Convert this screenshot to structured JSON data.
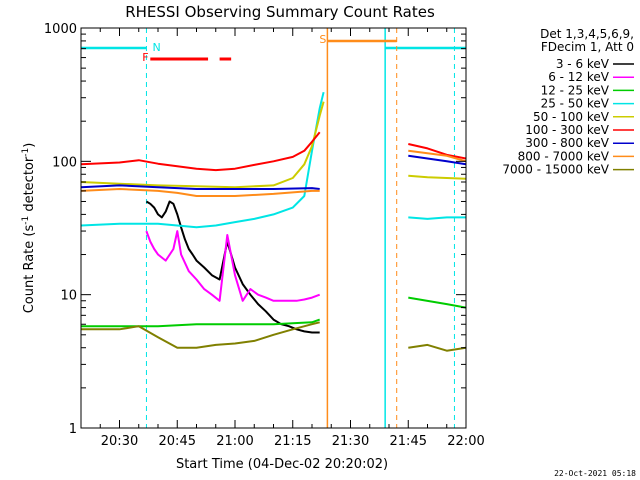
{
  "chart_data": {
    "type": "line",
    "title": "RHESSI Observing Summary Count Rates",
    "xlabel": "Start Time (04-Dec-02 20:20:02)",
    "ylabel_main": "Count Rate (s",
    "ylabel_sup1": "-1",
    "ylabel_mid": " detector",
    "ylabel_sup2": "-1",
    "ylabel_end": ")",
    "yscale": "log",
    "ylim": [
      1,
      1000
    ],
    "xlim_minutes": [
      0,
      100
    ],
    "yticks": [
      {
        "value": 1,
        "label": "1"
      },
      {
        "value": 10,
        "label": "10"
      },
      {
        "value": 100,
        "label": "100"
      },
      {
        "value": 1000,
        "label": "1000"
      }
    ],
    "xticks": [
      {
        "minute": 10,
        "label": "20:30"
      },
      {
        "minute": 25,
        "label": "20:45"
      },
      {
        "minute": 40,
        "label": "21:00"
      },
      {
        "minute": 55,
        "label": "21:15"
      },
      {
        "minute": 70,
        "label": "21:30"
      },
      {
        "minute": 85,
        "label": "21:45"
      },
      {
        "minute": 100,
        "label": "22:00"
      }
    ],
    "legend_header": [
      "Det 1,3,4,5,6,9,",
      "FDecim 1, Att 0"
    ],
    "series": [
      {
        "name": "3 - 6 keV",
        "color": "#000000",
        "x": [
          17,
          18,
          19,
          20,
          21,
          22,
          23,
          24,
          25,
          26,
          27,
          28,
          29,
          30,
          32,
          34,
          36,
          38,
          40,
          42,
          44,
          46,
          48,
          50,
          52,
          54,
          56,
          58,
          60,
          62
        ],
        "y": [
          50,
          48,
          45,
          40,
          38,
          42,
          50,
          48,
          40,
          32,
          26,
          22,
          20,
          18,
          16,
          14,
          13,
          25,
          16,
          12,
          10,
          8.5,
          7.5,
          6.5,
          6,
          5.8,
          5.5,
          5.3,
          5.2,
          5.2
        ]
      },
      {
        "name": "6 - 12 keV",
        "color": "#ff00ff",
        "x": [
          17,
          18,
          19,
          20,
          22,
          24,
          25,
          26,
          28,
          30,
          32,
          34,
          36,
          38,
          40,
          42,
          44,
          46,
          48,
          50,
          52,
          54,
          56,
          58,
          60,
          62
        ],
        "y": [
          30,
          25,
          22,
          20,
          18,
          22,
          30,
          20,
          15,
          13,
          11,
          10,
          9,
          28,
          14,
          9,
          11,
          10,
          9.5,
          9,
          9,
          9,
          9,
          9.2,
          9.5,
          10
        ]
      },
      {
        "name": "12 - 25 keV",
        "color": "#00cc00",
        "x": [
          0,
          10,
          20,
          30,
          40,
          50,
          60,
          62,
          85,
          95,
          100
        ],
        "y": [
          5.8,
          5.8,
          5.8,
          6,
          6,
          6,
          6.2,
          6.5,
          9.5,
          8.5,
          8
        ]
      },
      {
        "name": "25 - 50 keV",
        "color": "#00e5e5",
        "x": [
          0,
          10,
          20,
          25,
          30,
          35,
          40,
          45,
          50,
          55,
          58,
          60,
          62,
          63,
          85,
          90,
          95,
          100
        ],
        "y": [
          33,
          34,
          34,
          33,
          32,
          33,
          35,
          37,
          40,
          45,
          55,
          120,
          250,
          330,
          38,
          37,
          38,
          38
        ]
      },
      {
        "name": "50 - 100 keV",
        "color": "#cccc00",
        "x": [
          0,
          10,
          20,
          30,
          40,
          50,
          55,
          58,
          60,
          62,
          63,
          85,
          90,
          95,
          100
        ],
        "y": [
          70,
          68,
          66,
          65,
          64,
          66,
          75,
          95,
          130,
          220,
          280,
          78,
          76,
          75,
          74
        ]
      },
      {
        "name": "100 - 300 keV",
        "color": "#ff0000",
        "x": [
          0,
          10,
          15,
          20,
          25,
          30,
          35,
          40,
          45,
          50,
          55,
          58,
          60,
          62,
          85,
          90,
          95,
          100
        ],
        "y": [
          95,
          98,
          102,
          96,
          92,
          88,
          86,
          88,
          94,
          100,
          108,
          120,
          140,
          165,
          135,
          125,
          112,
          105
        ]
      },
      {
        "name": "300 - 800 keV",
        "color": "#0000cc",
        "x": [
          0,
          10,
          20,
          30,
          40,
          50,
          60,
          62,
          85,
          90,
          95,
          100
        ],
        "y": [
          64,
          66,
          64,
          62,
          62,
          62,
          63,
          62,
          110,
          105,
          100,
          95
        ]
      },
      {
        "name": "800 - 7000 keV",
        "color": "#ff8c1a",
        "x": [
          0,
          10,
          20,
          25,
          30,
          40,
          50,
          60,
          62,
          85,
          90,
          95,
          100
        ],
        "y": [
          60,
          62,
          60,
          58,
          55,
          55,
          57,
          60,
          60,
          120,
          115,
          110,
          100
        ]
      },
      {
        "name": "7000 - 15000 keV",
        "color": "#808000",
        "x": [
          0,
          10,
          15,
          20,
          25,
          30,
          35,
          40,
          45,
          50,
          55,
          60,
          62,
          85,
          90,
          95,
          100
        ],
        "y": [
          5.5,
          5.5,
          5.8,
          4.8,
          4,
          4,
          4.2,
          4.3,
          4.5,
          5,
          5.5,
          6,
          6.2,
          4,
          4.2,
          3.8,
          4
        ]
      }
    ],
    "markers": [
      {
        "code": "N",
        "color": "#00e5e5",
        "segments": [
          [
            0,
            17
          ],
          [
            79,
            100
          ]
        ],
        "dashed_lines": [
          17,
          97
        ]
      },
      {
        "code": "F",
        "color": "#ff0000",
        "segments": [
          [
            18,
            33
          ],
          [
            36,
            39
          ]
        ]
      },
      {
        "code": "S",
        "color": "#ff8c1a",
        "segments": [
          [
            64,
            82
          ]
        ],
        "dashed_lines": [
          82
        ]
      }
    ],
    "gap_solid_lines": [
      {
        "minute": 64,
        "color": "#ff8c1a"
      },
      {
        "minute": 79,
        "color": "#00e5e5"
      }
    ]
  },
  "timestamp": "22-Oct-2021 05:18"
}
